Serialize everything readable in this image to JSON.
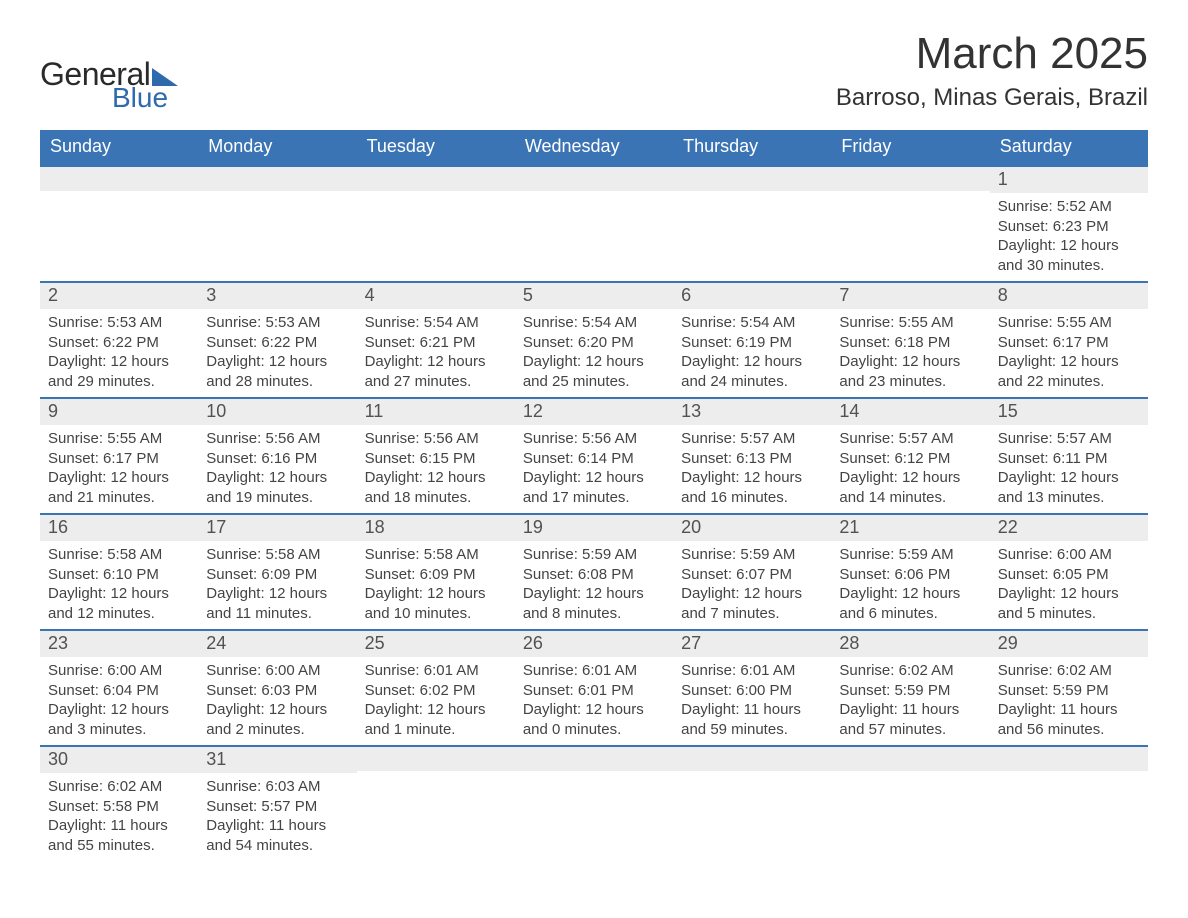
{
  "brand": {
    "word1": "General",
    "word2": "Blue"
  },
  "title": "March 2025",
  "location": "Barroso, Minas Gerais, Brazil",
  "colors": {
    "header_bg": "#3b74b4",
    "header_text": "#ffffff",
    "row_border": "#3b74b4",
    "daynum_bg": "#ededed",
    "brand_blue": "#2f6aad",
    "body_text": "#3a3a3a"
  },
  "typography": {
    "title_fontsize": 44,
    "location_fontsize": 24,
    "dayheader_fontsize": 18,
    "cell_fontsize": 15
  },
  "layout": {
    "columns": 7,
    "weeks": 6
  },
  "day_headers": [
    "Sunday",
    "Monday",
    "Tuesday",
    "Wednesday",
    "Thursday",
    "Friday",
    "Saturday"
  ],
  "weeks": [
    [
      null,
      null,
      null,
      null,
      null,
      null,
      {
        "n": "1",
        "sunrise": "5:52 AM",
        "sunset": "6:23 PM",
        "daylight": "12 hours and 30 minutes."
      }
    ],
    [
      {
        "n": "2",
        "sunrise": "5:53 AM",
        "sunset": "6:22 PM",
        "daylight": "12 hours and 29 minutes."
      },
      {
        "n": "3",
        "sunrise": "5:53 AM",
        "sunset": "6:22 PM",
        "daylight": "12 hours and 28 minutes."
      },
      {
        "n": "4",
        "sunrise": "5:54 AM",
        "sunset": "6:21 PM",
        "daylight": "12 hours and 27 minutes."
      },
      {
        "n": "5",
        "sunrise": "5:54 AM",
        "sunset": "6:20 PM",
        "daylight": "12 hours and 25 minutes."
      },
      {
        "n": "6",
        "sunrise": "5:54 AM",
        "sunset": "6:19 PM",
        "daylight": "12 hours and 24 minutes."
      },
      {
        "n": "7",
        "sunrise": "5:55 AM",
        "sunset": "6:18 PM",
        "daylight": "12 hours and 23 minutes."
      },
      {
        "n": "8",
        "sunrise": "5:55 AM",
        "sunset": "6:17 PM",
        "daylight": "12 hours and 22 minutes."
      }
    ],
    [
      {
        "n": "9",
        "sunrise": "5:55 AM",
        "sunset": "6:17 PM",
        "daylight": "12 hours and 21 minutes."
      },
      {
        "n": "10",
        "sunrise": "5:56 AM",
        "sunset": "6:16 PM",
        "daylight": "12 hours and 19 minutes."
      },
      {
        "n": "11",
        "sunrise": "5:56 AM",
        "sunset": "6:15 PM",
        "daylight": "12 hours and 18 minutes."
      },
      {
        "n": "12",
        "sunrise": "5:56 AM",
        "sunset": "6:14 PM",
        "daylight": "12 hours and 17 minutes."
      },
      {
        "n": "13",
        "sunrise": "5:57 AM",
        "sunset": "6:13 PM",
        "daylight": "12 hours and 16 minutes."
      },
      {
        "n": "14",
        "sunrise": "5:57 AM",
        "sunset": "6:12 PM",
        "daylight": "12 hours and 14 minutes."
      },
      {
        "n": "15",
        "sunrise": "5:57 AM",
        "sunset": "6:11 PM",
        "daylight": "12 hours and 13 minutes."
      }
    ],
    [
      {
        "n": "16",
        "sunrise": "5:58 AM",
        "sunset": "6:10 PM",
        "daylight": "12 hours and 12 minutes."
      },
      {
        "n": "17",
        "sunrise": "5:58 AM",
        "sunset": "6:09 PM",
        "daylight": "12 hours and 11 minutes."
      },
      {
        "n": "18",
        "sunrise": "5:58 AM",
        "sunset": "6:09 PM",
        "daylight": "12 hours and 10 minutes."
      },
      {
        "n": "19",
        "sunrise": "5:59 AM",
        "sunset": "6:08 PM",
        "daylight": "12 hours and 8 minutes."
      },
      {
        "n": "20",
        "sunrise": "5:59 AM",
        "sunset": "6:07 PM",
        "daylight": "12 hours and 7 minutes."
      },
      {
        "n": "21",
        "sunrise": "5:59 AM",
        "sunset": "6:06 PM",
        "daylight": "12 hours and 6 minutes."
      },
      {
        "n": "22",
        "sunrise": "6:00 AM",
        "sunset": "6:05 PM",
        "daylight": "12 hours and 5 minutes."
      }
    ],
    [
      {
        "n": "23",
        "sunrise": "6:00 AM",
        "sunset": "6:04 PM",
        "daylight": "12 hours and 3 minutes."
      },
      {
        "n": "24",
        "sunrise": "6:00 AM",
        "sunset": "6:03 PM",
        "daylight": "12 hours and 2 minutes."
      },
      {
        "n": "25",
        "sunrise": "6:01 AM",
        "sunset": "6:02 PM",
        "daylight": "12 hours and 1 minute."
      },
      {
        "n": "26",
        "sunrise": "6:01 AM",
        "sunset": "6:01 PM",
        "daylight": "12 hours and 0 minutes."
      },
      {
        "n": "27",
        "sunrise": "6:01 AM",
        "sunset": "6:00 PM",
        "daylight": "11 hours and 59 minutes."
      },
      {
        "n": "28",
        "sunrise": "6:02 AM",
        "sunset": "5:59 PM",
        "daylight": "11 hours and 57 minutes."
      },
      {
        "n": "29",
        "sunrise": "6:02 AM",
        "sunset": "5:59 PM",
        "daylight": "11 hours and 56 minutes."
      }
    ],
    [
      {
        "n": "30",
        "sunrise": "6:02 AM",
        "sunset": "5:58 PM",
        "daylight": "11 hours and 55 minutes."
      },
      {
        "n": "31",
        "sunrise": "6:03 AM",
        "sunset": "5:57 PM",
        "daylight": "11 hours and 54 minutes."
      },
      null,
      null,
      null,
      null,
      null
    ]
  ]
}
